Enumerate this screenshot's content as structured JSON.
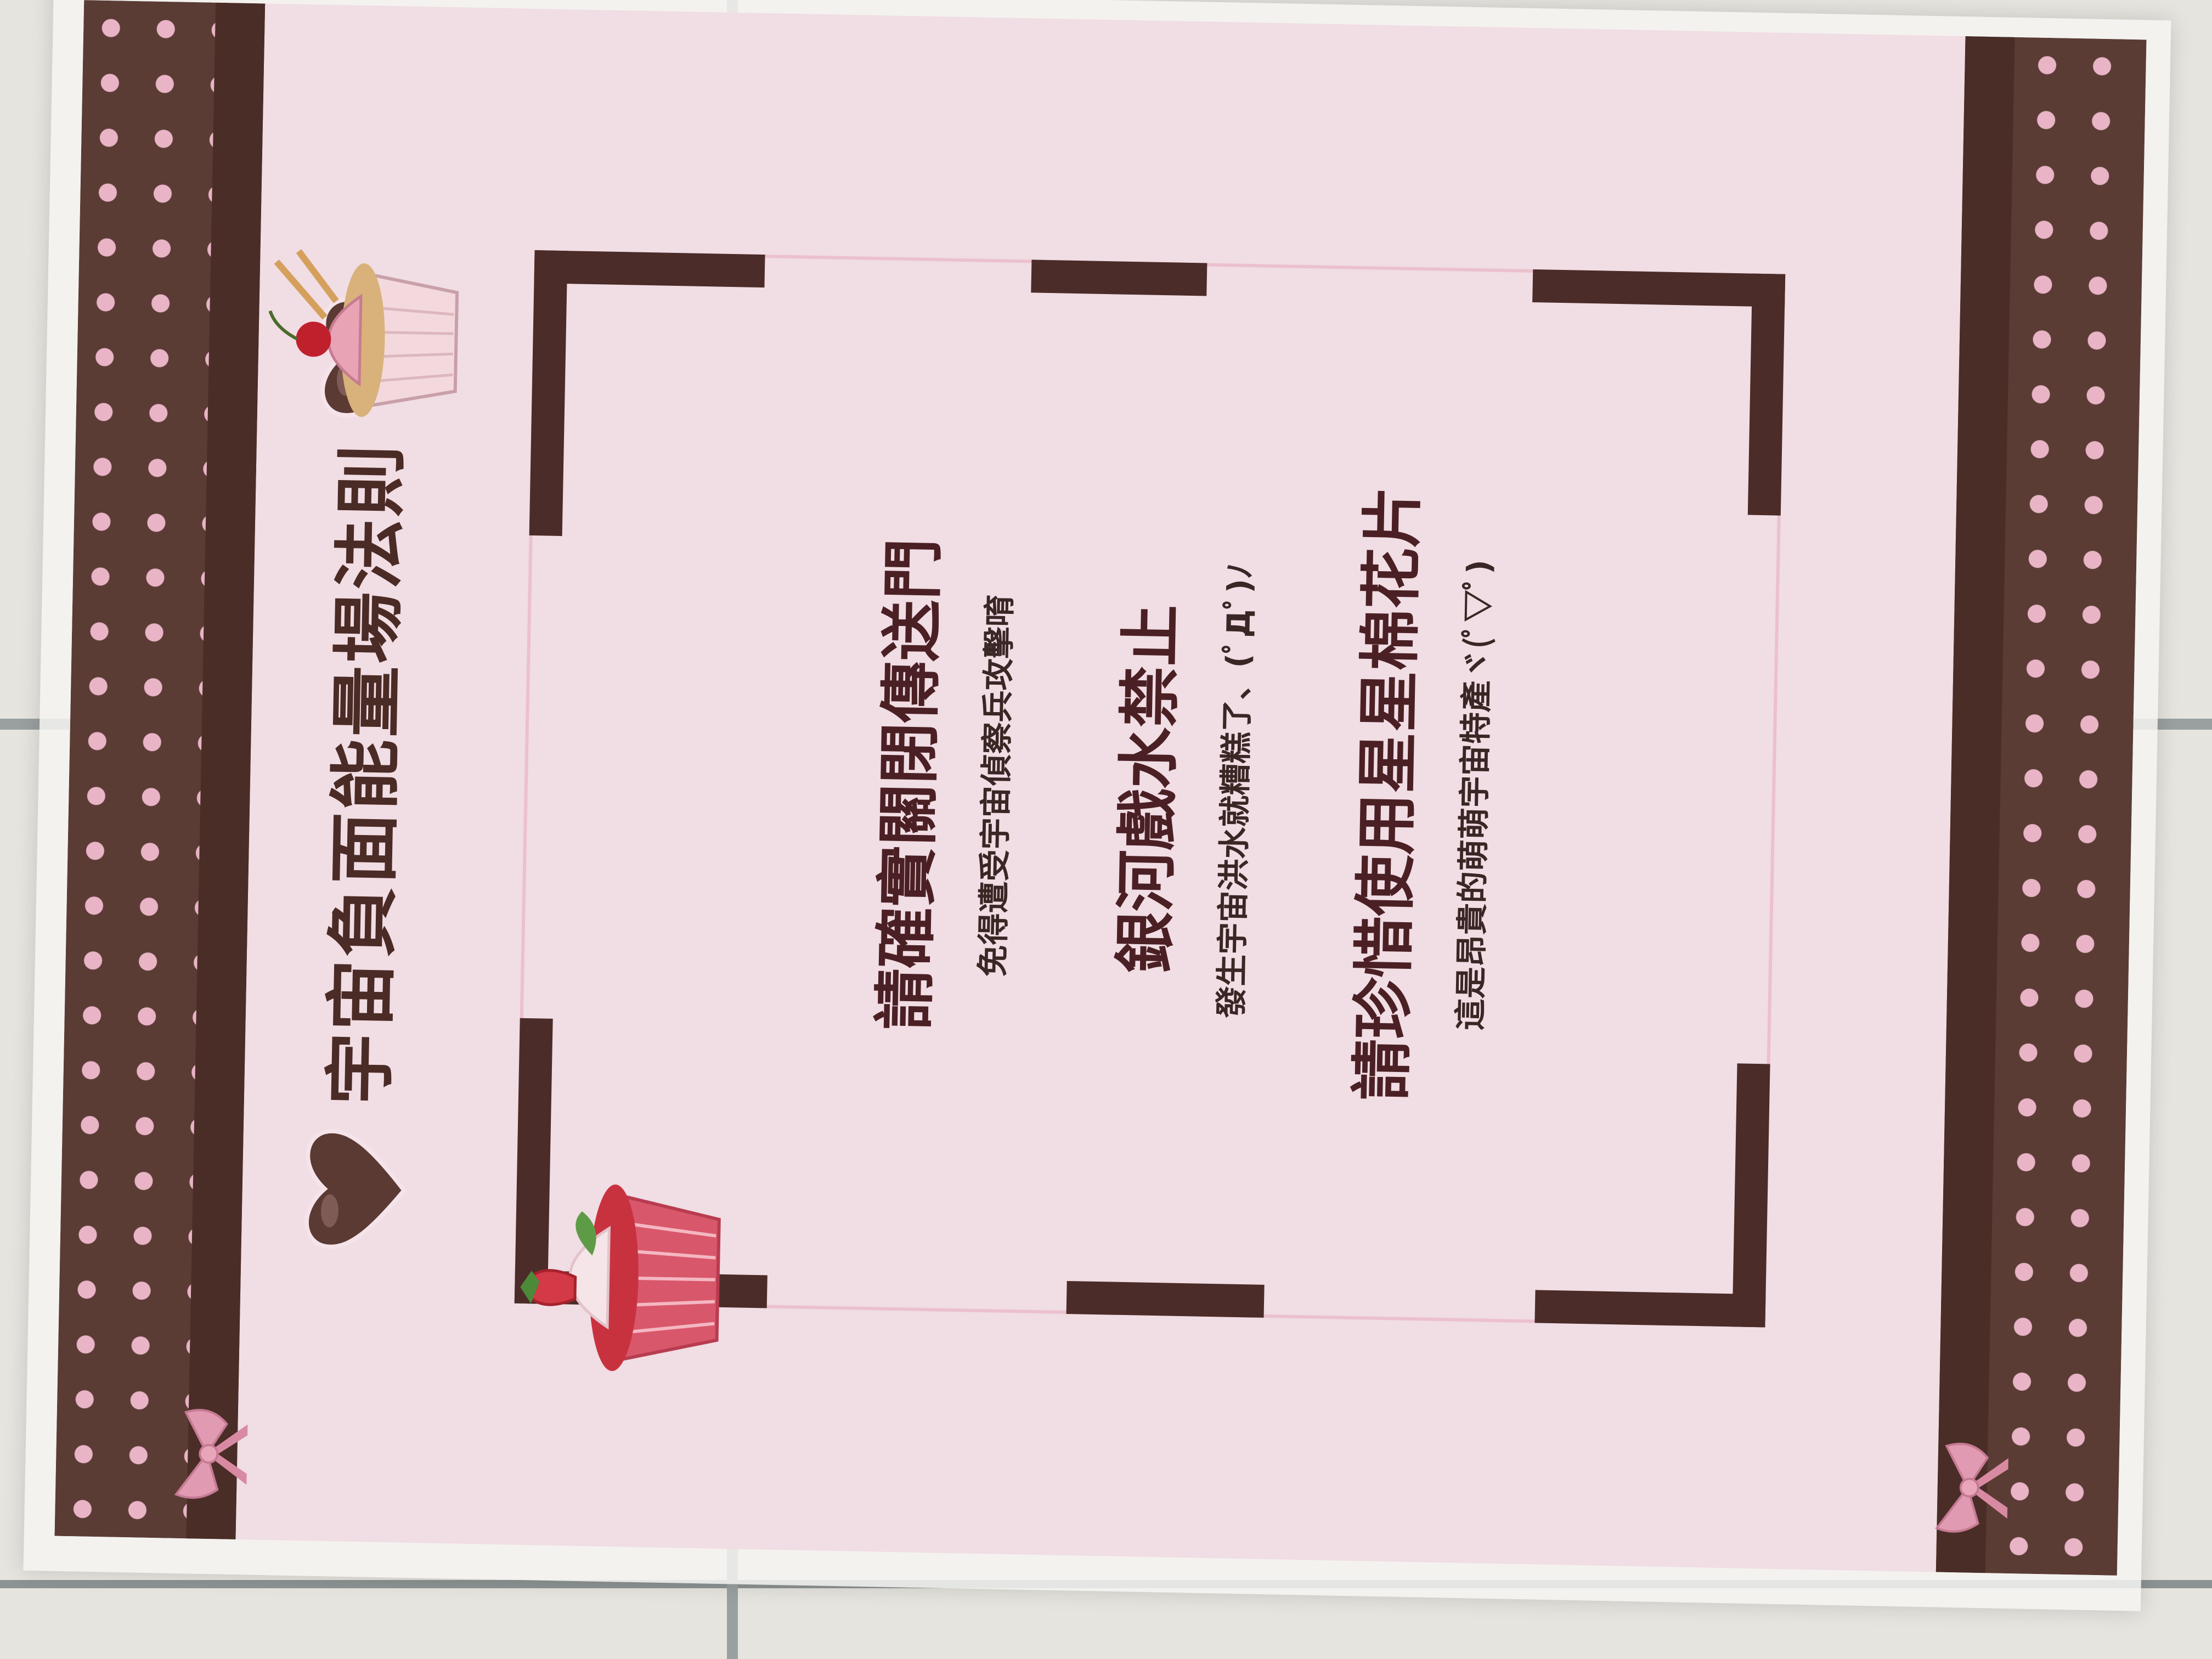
{
  "poster": {
    "title": "宇宙負面能量場法則",
    "rules": [
      {
        "title": "請確實關閉傳送門",
        "subtitle": "免得遭受宇宙偵察兵攻擊唷"
      },
      {
        "title": "銀河戲水禁止",
        "subtitle": "發生宇宙洪水就糟糕了、(ﾟДﾟ)ﾉ"
      },
      {
        "title": "請珍惜使用星星棉花片",
        "subtitle": "這是昂貴的萌萌宇宙特產ヾ(ﾟ▽ﾟ)"
      }
    ]
  },
  "colors": {
    "band_brown": "#5a3c35",
    "polka_pink": "#e9b4c6",
    "poster_pink": "#f1dde4",
    "text_dark": "#4b2024"
  },
  "icons": [
    "heart-icon",
    "cupcake-cherry-icon",
    "cupcake-strawberry-icon",
    "bow-icon"
  ]
}
